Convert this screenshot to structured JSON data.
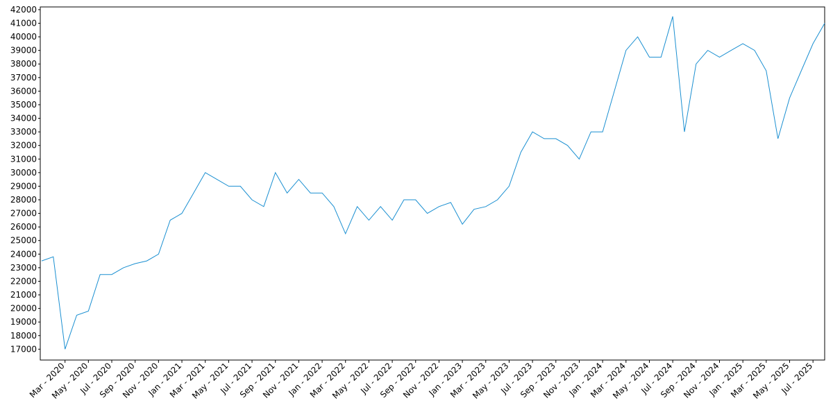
{
  "chart_data": {
    "type": "line",
    "color": "#1a8fd1",
    "x": [
      "2020-01",
      "2020-02",
      "2020-03",
      "2020-04",
      "2020-05",
      "2020-06",
      "2020-07",
      "2020-08",
      "2020-09",
      "2020-10",
      "2020-11",
      "2020-12",
      "2021-01",
      "2021-02",
      "2021-03",
      "2021-04",
      "2021-05",
      "2021-06",
      "2021-07",
      "2021-08",
      "2021-09",
      "2021-10",
      "2021-11",
      "2021-12",
      "2022-01",
      "2022-02",
      "2022-03",
      "2022-04",
      "2022-05",
      "2022-06",
      "2022-07",
      "2022-08",
      "2022-09",
      "2022-10",
      "2022-11",
      "2022-12",
      "2023-01",
      "2023-02",
      "2023-03",
      "2023-04",
      "2023-05",
      "2023-06",
      "2023-07",
      "2023-08",
      "2023-09",
      "2023-10",
      "2023-11",
      "2023-12",
      "2024-01",
      "2024-02",
      "2024-03",
      "2024-04",
      "2024-05",
      "2024-06",
      "2024-07",
      "2024-08",
      "2024-09",
      "2024-10",
      "2024-11",
      "2024-12",
      "2025-01",
      "2025-02",
      "2025-03",
      "2025-04",
      "2025-05",
      "2025-06",
      "2025-07",
      "2025-08"
    ],
    "values": [
      23500,
      23800,
      17000,
      19500,
      19800,
      22500,
      22500,
      23000,
      23300,
      23500,
      24000,
      26500,
      27000,
      28500,
      30000,
      29500,
      29000,
      29000,
      28000,
      27500,
      30000,
      28500,
      29500,
      28500,
      28500,
      27500,
      25500,
      27500,
      26500,
      27500,
      26500,
      28000,
      28000,
      27000,
      27500,
      27800,
      26200,
      27300,
      27500,
      28000,
      29000,
      31500,
      33000,
      32500,
      32500,
      32000,
      31000,
      33000,
      33000,
      36000,
      39000,
      40000,
      38500,
      38500,
      41500,
      33000,
      38000,
      39000,
      38500,
      39000,
      39500,
      39000,
      37500,
      32500,
      35500,
      37500,
      39500,
      41000
    ],
    "xlim": [
      "2020-01",
      "2025-08"
    ],
    "xticks": [
      {
        "value": "2020-03",
        "label": "Mar - 2020"
      },
      {
        "value": "2020-05",
        "label": "May - 2020"
      },
      {
        "value": "2020-07",
        "label": "Jul - 2020"
      },
      {
        "value": "2020-09",
        "label": "Sep - 2020"
      },
      {
        "value": "2020-11",
        "label": "Nov - 2020"
      },
      {
        "value": "2021-01",
        "label": "Jan - 2021"
      },
      {
        "value": "2021-03",
        "label": "Mar - 2021"
      },
      {
        "value": "2021-05",
        "label": "May - 2021"
      },
      {
        "value": "2021-07",
        "label": "Jul - 2021"
      },
      {
        "value": "2021-09",
        "label": "Sep - 2021"
      },
      {
        "value": "2021-11",
        "label": "Nov - 2021"
      },
      {
        "value": "2022-01",
        "label": "Jan - 2022"
      },
      {
        "value": "2022-03",
        "label": "Mar - 2022"
      },
      {
        "value": "2022-05",
        "label": "May - 2022"
      },
      {
        "value": "2022-07",
        "label": "Jul - 2022"
      },
      {
        "value": "2022-09",
        "label": "Sep - 2022"
      },
      {
        "value": "2022-11",
        "label": "Nov - 2022"
      },
      {
        "value": "2023-01",
        "label": "Jan - 2023"
      },
      {
        "value": "2023-03",
        "label": "Mar - 2023"
      },
      {
        "value": "2023-05",
        "label": "May - 2023"
      },
      {
        "value": "2023-07",
        "label": "Jul - 2023"
      },
      {
        "value": "2023-09",
        "label": "Sep - 2023"
      },
      {
        "value": "2023-11",
        "label": "Nov - 2023"
      },
      {
        "value": "2024-01",
        "label": "Jan - 2024"
      },
      {
        "value": "2024-03",
        "label": "Mar - 2024"
      },
      {
        "value": "2024-05",
        "label": "May - 2024"
      },
      {
        "value": "2024-07",
        "label": "Jul - 2024"
      },
      {
        "value": "2024-09",
        "label": "Sep - 2024"
      },
      {
        "value": "2024-11",
        "label": "Nov - 2024"
      },
      {
        "value": "2025-01",
        "label": "Jan - 2025"
      },
      {
        "value": "2025-03",
        "label": "Mar - 2025"
      },
      {
        "value": "2025-05",
        "label": "May - 2025"
      },
      {
        "value": "2025-07",
        "label": "Jul - 2025"
      }
    ],
    "ylim": [
      16200,
      42200
    ],
    "yticks": [
      17000,
      18000,
      19000,
      20000,
      21000,
      22000,
      23000,
      24000,
      25000,
      26000,
      27000,
      28000,
      29000,
      30000,
      31000,
      32000,
      33000,
      34000,
      35000,
      36000,
      37000,
      38000,
      39000,
      40000,
      41000,
      42000
    ]
  }
}
